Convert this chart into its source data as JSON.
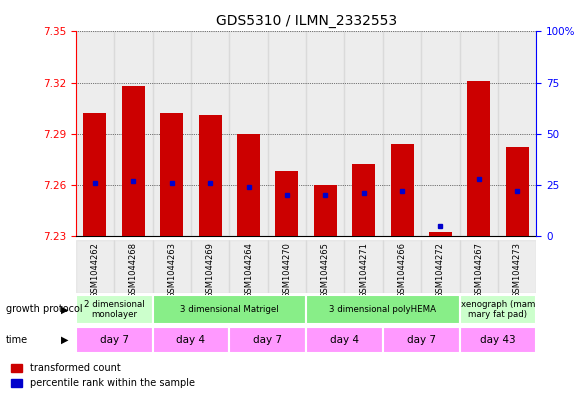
{
  "title": "GDS5310 / ILMN_2332553",
  "samples": [
    "GSM1044262",
    "GSM1044268",
    "GSM1044263",
    "GSM1044269",
    "GSM1044264",
    "GSM1044270",
    "GSM1044265",
    "GSM1044271",
    "GSM1044266",
    "GSM1044272",
    "GSM1044267",
    "GSM1044273"
  ],
  "transformed_counts": [
    7.302,
    7.318,
    7.302,
    7.301,
    7.29,
    7.268,
    7.26,
    7.272,
    7.284,
    7.232,
    7.321,
    7.282
  ],
  "percentile_ranks": [
    26,
    27,
    26,
    26,
    24,
    20,
    20,
    21,
    22,
    5,
    28,
    22
  ],
  "y_min": 7.23,
  "y_max": 7.35,
  "y_ticks": [
    7.23,
    7.26,
    7.29,
    7.32,
    7.35
  ],
  "right_y_ticks": [
    0,
    25,
    50,
    75,
    100
  ],
  "bar_color": "#cc0000",
  "percentile_color": "#0000cc",
  "sample_bg_color": "#cccccc",
  "growth_groups": [
    {
      "label": "2 dimensional\nmonolayer",
      "start": 0,
      "end": 2,
      "color": "#ccffcc"
    },
    {
      "label": "3 dimensional Matrigel",
      "start": 2,
      "end": 6,
      "color": "#88ee88"
    },
    {
      "label": "3 dimensional polyHEMA",
      "start": 6,
      "end": 10,
      "color": "#88ee88"
    },
    {
      "label": "xenograph (mam\nmary fat pad)",
      "start": 10,
      "end": 12,
      "color": "#ccffcc"
    }
  ],
  "time_groups": [
    {
      "label": "day 7",
      "start": 0,
      "end": 2,
      "color": "#ff99ff"
    },
    {
      "label": "day 4",
      "start": 2,
      "end": 4,
      "color": "#ff99ff"
    },
    {
      "label": "day 7",
      "start": 4,
      "end": 6,
      "color": "#ff99ff"
    },
    {
      "label": "day 4",
      "start": 6,
      "end": 8,
      "color": "#ff99ff"
    },
    {
      "label": "day 7",
      "start": 8,
      "end": 10,
      "color": "#ff99ff"
    },
    {
      "label": "day 43",
      "start": 10,
      "end": 12,
      "color": "#ff99ff"
    }
  ],
  "legend_red": "transformed count",
  "legend_blue": "percentile rank within the sample",
  "left_label_growth": "growth protocol",
  "left_label_time": "time"
}
